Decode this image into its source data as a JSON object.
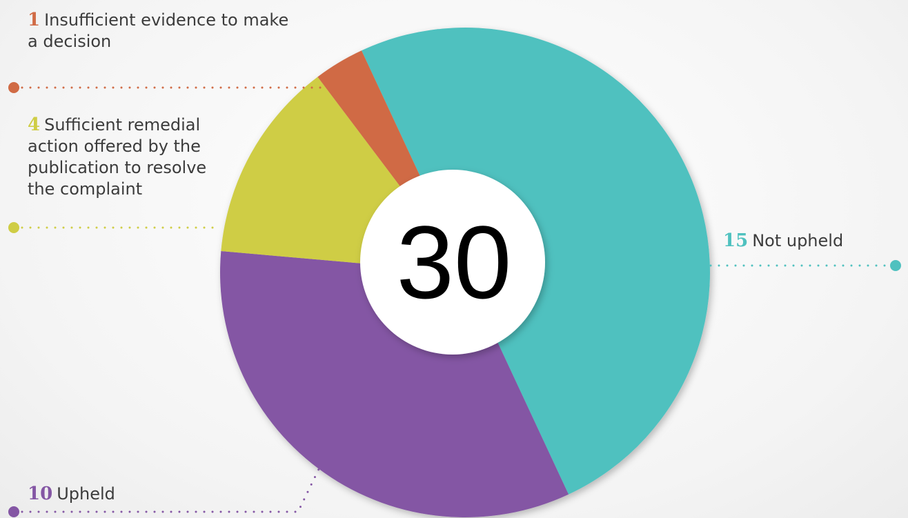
{
  "chart_data": {
    "type": "donut",
    "categories": [
      "Not upheld",
      "Upheld",
      "Sufficient remedial action offered by the publication to resolve the complaint",
      "Insufficient evidence to make a decision"
    ],
    "values": [
      15,
      10,
      4,
      1
    ],
    "colors": [
      "#4fc1bf",
      "#8456a4",
      "#cfcd45",
      "#d06b45"
    ],
    "total": 30
  }
}
